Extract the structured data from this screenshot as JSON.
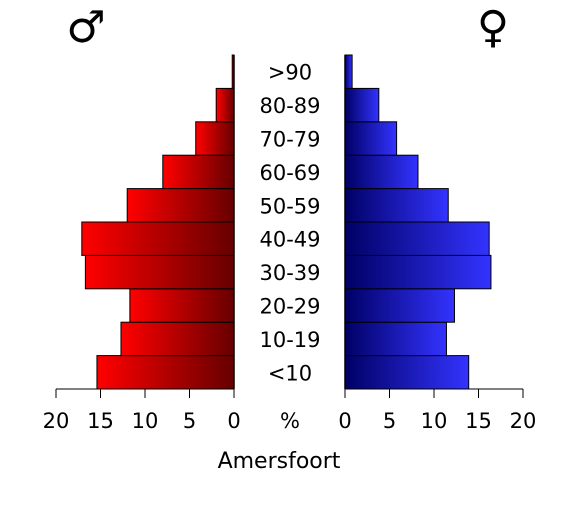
{
  "chart_data": {
    "type": "bar",
    "subtype": "population-pyramid",
    "categories": [
      "<10",
      "10-19",
      "20-29",
      "30-39",
      "40-49",
      "50-59",
      "60-69",
      "70-79",
      "80-89",
      ">90"
    ],
    "series": [
      {
        "name": "♂",
        "values": [
          15.4,
          12.7,
          11.7,
          16.7,
          17.1,
          12.0,
          8.0,
          4.3,
          2.0,
          0.2
        ],
        "color_light": "#ff0000",
        "color_dark": "#660000"
      },
      {
        "name": "♀",
        "values": [
          13.9,
          11.4,
          12.3,
          16.4,
          16.2,
          11.6,
          8.2,
          5.8,
          3.8,
          0.8
        ],
        "color_light": "#3333ff",
        "color_dark": "#000066"
      }
    ],
    "xlim": [
      0,
      20
    ],
    "ticks": [
      "20",
      "15",
      "10",
      "5",
      "0",
      "%",
      "0",
      "5",
      "10",
      "15",
      "20"
    ],
    "xlabel": "Amersfoort",
    "male_symbol": "♂",
    "female_symbol": "♀",
    "grid": false,
    "legend": "none"
  }
}
